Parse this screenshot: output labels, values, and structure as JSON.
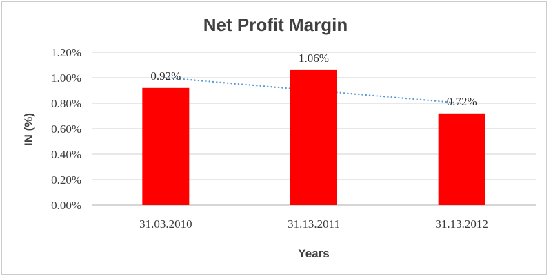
{
  "window": {
    "background": "#ffffff",
    "border_color": "#cbcbcb"
  },
  "chart_data": {
    "type": "bar",
    "title": "Net Profit Margin",
    "categories": [
      "31.03.2010",
      "31.13.2011",
      "31.13.2012"
    ],
    "values": [
      0.92,
      1.06,
      0.72
    ],
    "data_labels": [
      "0.92%",
      "1.06%",
      "0.72%"
    ],
    "xlabel": "Years",
    "ylabel": "IN (%)",
    "ylim": [
      0,
      1.2
    ],
    "ytick_step": 0.2,
    "yticks": [
      {
        "value": 0.0,
        "label": "0.00%"
      },
      {
        "value": 0.2,
        "label": "0.20%"
      },
      {
        "value": 0.4,
        "label": "0.40%"
      },
      {
        "value": 0.6,
        "label": "0.60%"
      },
      {
        "value": 0.8,
        "label": "0.80%"
      },
      {
        "value": 1.0,
        "label": "1.00%"
      },
      {
        "value": 1.2,
        "label": "1.20%"
      }
    ],
    "grid": true,
    "legend": "none",
    "bar_color": "#ff0000",
    "gridline_color": "#d9d9d9",
    "axis_line_color": "#bdbdbd",
    "title_color": "#404040",
    "label_color": "#3a3a3a",
    "trendline": {
      "kind": "linear",
      "style": "dotted",
      "color": "#5b9bd5",
      "start_value": 1.0,
      "end_value": 0.8
    }
  }
}
